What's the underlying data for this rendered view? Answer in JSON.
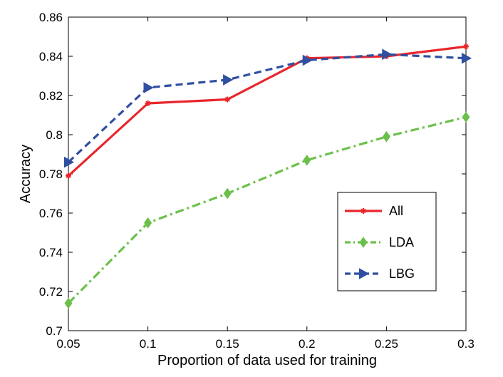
{
  "chart_data": {
    "type": "line",
    "title": "",
    "xlabel": "Proportion of data used for training",
    "ylabel": "Accuracy",
    "x": [
      0.05,
      0.1,
      0.15,
      0.2,
      0.25,
      0.3
    ],
    "xlim": [
      0.05,
      0.3
    ],
    "ylim": [
      0.7,
      0.86
    ],
    "x_ticks": [
      "0.05",
      "0.1",
      "0.15",
      "0.2",
      "0.25",
      "0.3"
    ],
    "y_ticks": [
      "0.7",
      "0.72",
      "0.74",
      "0.76",
      "0.78",
      "0.8",
      "0.82",
      "0.84",
      "0.86"
    ],
    "grid": false,
    "legend_position": "lower-right",
    "series": [
      {
        "name": "All",
        "color": "#e8262b",
        "line_style": "solid",
        "marker": "asterisk",
        "values": [
          0.779,
          0.816,
          0.818,
          0.839,
          0.84,
          0.845
        ]
      },
      {
        "name": "LDA",
        "color": "#6cc04a",
        "line_style": "dash-dot",
        "marker": "diamond",
        "values": [
          0.714,
          0.755,
          0.77,
          0.787,
          0.799,
          0.809
        ]
      },
      {
        "name": "LBG",
        "color": "#2f4fa0",
        "line_style": "dashed",
        "marker": "triangle-right",
        "values": [
          0.786,
          0.824,
          0.828,
          0.838,
          0.841,
          0.839
        ]
      }
    ]
  }
}
